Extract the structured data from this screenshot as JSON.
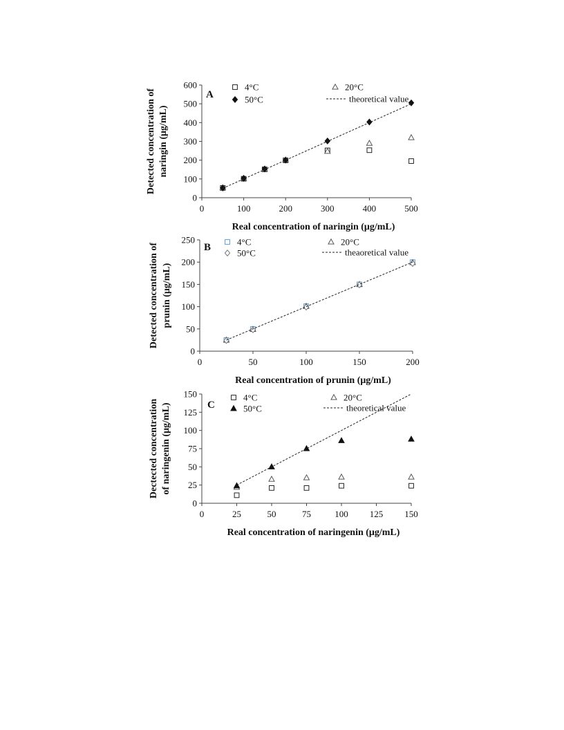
{
  "chart_data": [
    {
      "type": "scatter",
      "panel_label": "A",
      "xlabel": "Real concentration of naringin (μg/mL)",
      "ylabel": [
        "Detected  concentration of",
        "naringin (μg/mL)"
      ],
      "xlim": [
        0,
        500
      ],
      "ylim": [
        0,
        600
      ],
      "xticks": [
        0,
        100,
        200,
        300,
        400,
        500
      ],
      "yticks": [
        0,
        100,
        200,
        300,
        400,
        500,
        600
      ],
      "grid": false,
      "legend": [
        "4°C",
        "20°C",
        "50°C",
        "theoretical value"
      ],
      "series": [
        {
          "name": "4°C",
          "marker": "square",
          "x": [
            50,
            100,
            150,
            200,
            300,
            400,
            500
          ],
          "y": [
            52,
            101,
            151,
            199,
            252,
            253,
            195
          ]
        },
        {
          "name": "20°C",
          "marker": "triangle",
          "x": [
            50,
            100,
            150,
            200,
            300,
            400,
            500
          ],
          "y": [
            53,
            103,
            152,
            201,
            247,
            290,
            320
          ]
        },
        {
          "name": "50°C",
          "marker": "diamond-filled",
          "x": [
            50,
            100,
            150,
            200,
            300,
            400,
            500
          ],
          "y": [
            52,
            103,
            153,
            200,
            302,
            403,
            505
          ]
        },
        {
          "name": "theoretical value",
          "marker": "dashed-line",
          "x": [
            50,
            500
          ],
          "y": [
            50,
            500
          ]
        }
      ]
    },
    {
      "type": "scatter",
      "panel_label": "B",
      "xlabel": "Real concentration of prunin (μg/mL)",
      "ylabel": [
        "Detected concentration of",
        "prunin (μg/mL)"
      ],
      "xlim": [
        0,
        200
      ],
      "ylim": [
        0,
        250
      ],
      "xticks": [
        0,
        50,
        100,
        150,
        200
      ],
      "yticks": [
        0,
        50,
        100,
        150,
        200,
        250
      ],
      "grid": false,
      "legend": [
        "4°C",
        "20°C",
        "50°C",
        "theaoretical value"
      ],
      "series": [
        {
          "name": "4°C",
          "marker": "square-blue",
          "x": [
            25,
            50,
            100,
            150,
            200
          ],
          "y": [
            25,
            50,
            101,
            150,
            200
          ]
        },
        {
          "name": "20°C",
          "marker": "triangle",
          "x": [
            25,
            50,
            100,
            150,
            200
          ],
          "y": [
            25,
            49,
            101,
            150,
            199
          ]
        },
        {
          "name": "50°C",
          "marker": "diamond",
          "x": [
            25,
            50,
            100,
            150,
            200
          ],
          "y": [
            24,
            48,
            99,
            149,
            197
          ]
        },
        {
          "name": "theaoretical value",
          "marker": "dashed-line",
          "x": [
            25,
            200
          ],
          "y": [
            25,
            200
          ]
        }
      ]
    },
    {
      "type": "scatter",
      "panel_label": "C",
      "xlabel": "Real concentration of naringenin (μg/mL)",
      "ylabel": [
        "Dectected concentration",
        "of naringenin (μg/mL)"
      ],
      "xlim": [
        0,
        150
      ],
      "ylim": [
        0,
        150
      ],
      "xticks": [
        0,
        25,
        50,
        75,
        100,
        125,
        150
      ],
      "yticks": [
        0,
        25,
        50,
        75,
        100,
        125,
        150
      ],
      "grid": false,
      "legend": [
        "4°C",
        "20°C",
        "50°C",
        "theoretical value"
      ],
      "series": [
        {
          "name": "4°C",
          "marker": "square",
          "x": [
            25,
            50,
            75,
            100,
            150
          ],
          "y": [
            11,
            21,
            21,
            24,
            24
          ]
        },
        {
          "name": "20°C",
          "marker": "triangle",
          "x": [
            25,
            50,
            75,
            100,
            150
          ],
          "y": [
            22,
            33,
            35,
            36,
            36
          ]
        },
        {
          "name": "50°C",
          "marker": "triangle-filled",
          "x": [
            25,
            50,
            75,
            100,
            150
          ],
          "y": [
            24,
            50,
            75,
            86,
            88
          ]
        },
        {
          "name": "theoretical value",
          "marker": "dashed-line",
          "x": [
            25,
            150
          ],
          "y": [
            25,
            150
          ]
        }
      ]
    }
  ]
}
